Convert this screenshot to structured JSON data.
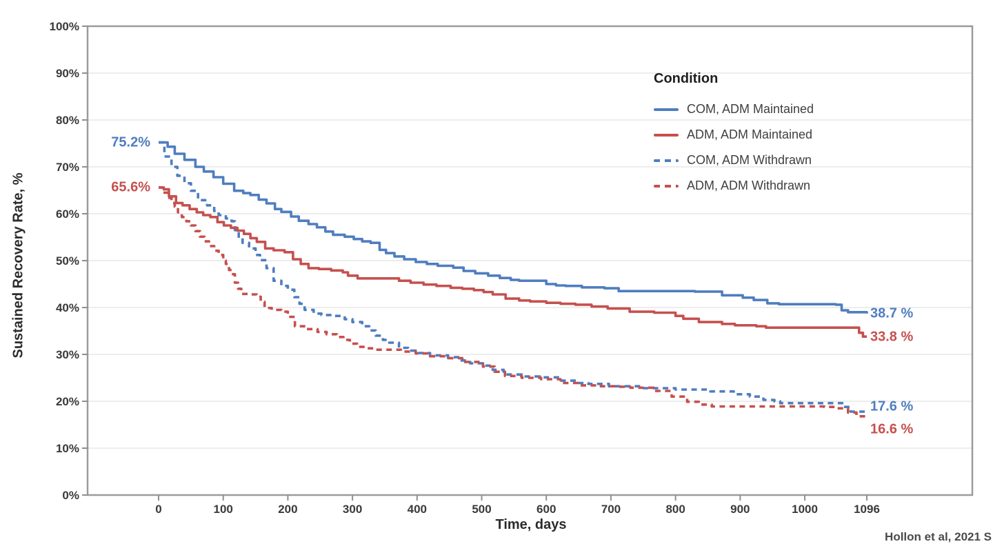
{
  "legend": {
    "title": "Condition"
  },
  "citation": "Hollon et al, 2021 S",
  "chart_data": {
    "type": "line",
    "subtype": "kaplan-meier-step",
    "title": "",
    "xlabel": "Time, days",
    "ylabel": "Sustained Recovery Rate, %",
    "xlim": [
      0,
      1096
    ],
    "ylim": [
      0,
      100
    ],
    "grid": "horizontal-major-only",
    "legend_position": "inside-top-right",
    "panel_border_color": "#9b9b9b",
    "gridline_color": "#ededed",
    "tick_text_color": "#3a3a3a",
    "x_ticks": [
      {
        "v": 0,
        "label": "0"
      },
      {
        "v": 100,
        "label": "100"
      },
      {
        "v": 200,
        "label": "200"
      },
      {
        "v": 300,
        "label": "300"
      },
      {
        "v": 400,
        "label": "400"
      },
      {
        "v": 500,
        "label": "500"
      },
      {
        "v": 600,
        "label": "600"
      },
      {
        "v": 700,
        "label": "700"
      },
      {
        "v": 800,
        "label": "800"
      },
      {
        "v": 900,
        "label": "900"
      },
      {
        "v": 1000,
        "label": "1000"
      },
      {
        "v": 1096,
        "label": "1096"
      }
    ],
    "y_ticks": [
      {
        "v": 0,
        "label": "0%"
      },
      {
        "v": 10,
        "label": "10%"
      },
      {
        "v": 20,
        "label": "20%"
      },
      {
        "v": 30,
        "label": "30%"
      },
      {
        "v": 40,
        "label": "40%"
      },
      {
        "v": 50,
        "label": "50%"
      },
      {
        "v": 60,
        "label": "60%"
      },
      {
        "v": 70,
        "label": "70%"
      },
      {
        "v": 80,
        "label": "80%"
      },
      {
        "v": 90,
        "label": "90%"
      },
      {
        "v": 100,
        "label": "100%"
      }
    ],
    "series": [
      {
        "name": "COM, ADM Maintained",
        "color": "#4f7dbf",
        "dash": false,
        "start_label": "75.2%",
        "end_label": "38.7 %",
        "points": [
          [
            0,
            75.2
          ],
          [
            14,
            74.3
          ],
          [
            25,
            72.8
          ],
          [
            40,
            71.5
          ],
          [
            57,
            70.0
          ],
          [
            70,
            69.0
          ],
          [
            85,
            67.8
          ],
          [
            100,
            66.4
          ],
          [
            117,
            64.9
          ],
          [
            131,
            64.4
          ],
          [
            142,
            64.0
          ],
          [
            155,
            63.0
          ],
          [
            167,
            62.2
          ],
          [
            180,
            61.0
          ],
          [
            190,
            60.4
          ],
          [
            205,
            59.4
          ],
          [
            217,
            58.5
          ],
          [
            232,
            57.8
          ],
          [
            245,
            57.1
          ],
          [
            258,
            56.2
          ],
          [
            270,
            55.5
          ],
          [
            288,
            55.1
          ],
          [
            302,
            54.6
          ],
          [
            315,
            54.1
          ],
          [
            328,
            53.8
          ],
          [
            342,
            52.3
          ],
          [
            352,
            51.6
          ],
          [
            365,
            50.9
          ],
          [
            380,
            50.3
          ],
          [
            398,
            49.7
          ],
          [
            415,
            49.3
          ],
          [
            432,
            48.9
          ],
          [
            456,
            48.5
          ],
          [
            472,
            47.8
          ],
          [
            490,
            47.3
          ],
          [
            510,
            46.8
          ],
          [
            528,
            46.3
          ],
          [
            545,
            45.9
          ],
          [
            558,
            45.7
          ],
          [
            600,
            45.0
          ],
          [
            615,
            44.7
          ],
          [
            630,
            44.6
          ],
          [
            655,
            44.3
          ],
          [
            690,
            44.1
          ],
          [
            712,
            43.5
          ],
          [
            830,
            43.4
          ],
          [
            872,
            42.6
          ],
          [
            904,
            42.1
          ],
          [
            921,
            41.6
          ],
          [
            942,
            40.9
          ],
          [
            960,
            40.7
          ],
          [
            1048,
            40.6
          ],
          [
            1057,
            39.4
          ],
          [
            1067,
            39.0
          ],
          [
            1096,
            38.7
          ]
        ]
      },
      {
        "name": "ADM, ADM Maintained",
        "color": "#c5504e",
        "dash": false,
        "start_label": "65.6%",
        "end_label": "33.8 %",
        "points": [
          [
            0,
            65.6
          ],
          [
            8,
            65.2
          ],
          [
            16,
            63.7
          ],
          [
            27,
            62.3
          ],
          [
            37,
            61.8
          ],
          [
            48,
            61.0
          ],
          [
            59,
            60.3
          ],
          [
            69,
            59.7
          ],
          [
            80,
            59.3
          ],
          [
            91,
            58.2
          ],
          [
            101,
            57.5
          ],
          [
            112,
            57.0
          ],
          [
            122,
            56.4
          ],
          [
            132,
            55.7
          ],
          [
            142,
            54.8
          ],
          [
            152,
            54.0
          ],
          [
            165,
            52.6
          ],
          [
            178,
            52.2
          ],
          [
            195,
            51.8
          ],
          [
            208,
            50.3
          ],
          [
            220,
            49.3
          ],
          [
            232,
            48.4
          ],
          [
            248,
            48.2
          ],
          [
            267,
            47.9
          ],
          [
            285,
            47.5
          ],
          [
            293,
            46.8
          ],
          [
            308,
            46.2
          ],
          [
            355,
            46.2
          ],
          [
            372,
            45.7
          ],
          [
            390,
            45.3
          ],
          [
            410,
            44.9
          ],
          [
            430,
            44.6
          ],
          [
            452,
            44.2
          ],
          [
            470,
            44.0
          ],
          [
            488,
            43.7
          ],
          [
            503,
            43.3
          ],
          [
            517,
            42.8
          ],
          [
            537,
            41.9
          ],
          [
            558,
            41.5
          ],
          [
            575,
            41.3
          ],
          [
            600,
            41.0
          ],
          [
            622,
            40.8
          ],
          [
            645,
            40.6
          ],
          [
            670,
            40.2
          ],
          [
            695,
            39.8
          ],
          [
            729,
            39.1
          ],
          [
            767,
            38.9
          ],
          [
            800,
            38.2
          ],
          [
            812,
            37.6
          ],
          [
            836,
            36.9
          ],
          [
            872,
            36.5
          ],
          [
            892,
            36.2
          ],
          [
            925,
            36.0
          ],
          [
            940,
            35.7
          ],
          [
            1073,
            35.7
          ],
          [
            1084,
            34.6
          ],
          [
            1090,
            33.8
          ],
          [
            1096,
            33.8
          ]
        ]
      },
      {
        "name": "COM, ADM Withdrawn",
        "color": "#4f7dbf",
        "dash": true,
        "start_label": "",
        "end_label": "17.6 %",
        "points": [
          [
            0,
            75.2
          ],
          [
            9,
            72.2
          ],
          [
            20,
            70.0
          ],
          [
            29,
            68.1
          ],
          [
            40,
            66.5
          ],
          [
            50,
            64.9
          ],
          [
            61,
            62.9
          ],
          [
            75,
            61.8
          ],
          [
            86,
            60.6
          ],
          [
            93,
            59.7
          ],
          [
            104,
            59.0
          ],
          [
            113,
            58.4
          ],
          [
            118,
            56.5
          ],
          [
            124,
            54.8
          ],
          [
            130,
            53.8
          ],
          [
            140,
            52.6
          ],
          [
            150,
            51.2
          ],
          [
            157,
            50.1
          ],
          [
            167,
            48.4
          ],
          [
            178,
            45.7
          ],
          [
            190,
            44.6
          ],
          [
            200,
            43.8
          ],
          [
            210,
            42.2
          ],
          [
            218,
            40.8
          ],
          [
            226,
            39.5
          ],
          [
            240,
            38.7
          ],
          [
            252,
            38.4
          ],
          [
            272,
            38.2
          ],
          [
            288,
            37.5
          ],
          [
            300,
            36.9
          ],
          [
            315,
            36.0
          ],
          [
            326,
            35.1
          ],
          [
            336,
            34.0
          ],
          [
            347,
            33.1
          ],
          [
            357,
            32.5
          ],
          [
            372,
            31.4
          ],
          [
            386,
            30.8
          ],
          [
            398,
            30.3
          ],
          [
            420,
            29.8
          ],
          [
            448,
            29.4
          ],
          [
            466,
            28.7
          ],
          [
            482,
            28.1
          ],
          [
            502,
            27.6
          ],
          [
            517,
            26.7
          ],
          [
            534,
            25.7
          ],
          [
            562,
            25.3
          ],
          [
            590,
            25.1
          ],
          [
            620,
            24.4
          ],
          [
            648,
            23.9
          ],
          [
            665,
            23.7
          ],
          [
            697,
            23.2
          ],
          [
            747,
            22.8
          ],
          [
            800,
            22.5
          ],
          [
            854,
            22.1
          ],
          [
            890,
            21.5
          ],
          [
            915,
            21.0
          ],
          [
            936,
            20.3
          ],
          [
            953,
            20.0
          ],
          [
            962,
            19.6
          ],
          [
            1048,
            19.6
          ],
          [
            1058,
            18.8
          ],
          [
            1071,
            17.8
          ],
          [
            1096,
            17.6
          ]
        ]
      },
      {
        "name": "ADM, ADM Withdrawn",
        "color": "#c5504e",
        "dash": true,
        "start_label": "",
        "end_label": "16.6 %",
        "points": [
          [
            0,
            65.6
          ],
          [
            7,
            64.5
          ],
          [
            14,
            63.4
          ],
          [
            20,
            62.3
          ],
          [
            25,
            61.5
          ],
          [
            30,
            60.3
          ],
          [
            36,
            59.3
          ],
          [
            43,
            58.4
          ],
          [
            50,
            57.5
          ],
          [
            57,
            56.3
          ],
          [
            64,
            55.1
          ],
          [
            71,
            54.1
          ],
          [
            78,
            53.1
          ],
          [
            86,
            52.1
          ],
          [
            93,
            51.2
          ],
          [
            100,
            50.0
          ],
          [
            104,
            49.3
          ],
          [
            109,
            48.0
          ],
          [
            113,
            47.1
          ],
          [
            118,
            45.3
          ],
          [
            123,
            44.0
          ],
          [
            128,
            42.9
          ],
          [
            142,
            42.8
          ],
          [
            152,
            42.3
          ],
          [
            158,
            41.2
          ],
          [
            164,
            39.9
          ],
          [
            175,
            39.5
          ],
          [
            190,
            39.1
          ],
          [
            200,
            38.0
          ],
          [
            211,
            36.0
          ],
          [
            228,
            35.4
          ],
          [
            246,
            34.8
          ],
          [
            260,
            34.3
          ],
          [
            276,
            33.7
          ],
          [
            286,
            33.1
          ],
          [
            296,
            32.3
          ],
          [
            307,
            31.6
          ],
          [
            320,
            31.3
          ],
          [
            335,
            31.0
          ],
          [
            360,
            31.0
          ],
          [
            375,
            30.6
          ],
          [
            398,
            30.2
          ],
          [
            420,
            29.6
          ],
          [
            448,
            29.2
          ],
          [
            470,
            28.4
          ],
          [
            502,
            27.4
          ],
          [
            520,
            26.3
          ],
          [
            536,
            25.4
          ],
          [
            562,
            25.0
          ],
          [
            592,
            24.7
          ],
          [
            622,
            23.9
          ],
          [
            652,
            23.4
          ],
          [
            682,
            23.2
          ],
          [
            706,
            23.1
          ],
          [
            730,
            22.9
          ],
          [
            766,
            22.2
          ],
          [
            794,
            21.0
          ],
          [
            818,
            19.9
          ],
          [
            836,
            19.3
          ],
          [
            856,
            18.9
          ],
          [
            1030,
            18.8
          ],
          [
            1050,
            18.5
          ],
          [
            1067,
            17.6
          ],
          [
            1080,
            16.8
          ],
          [
            1096,
            16.6
          ]
        ]
      }
    ]
  }
}
